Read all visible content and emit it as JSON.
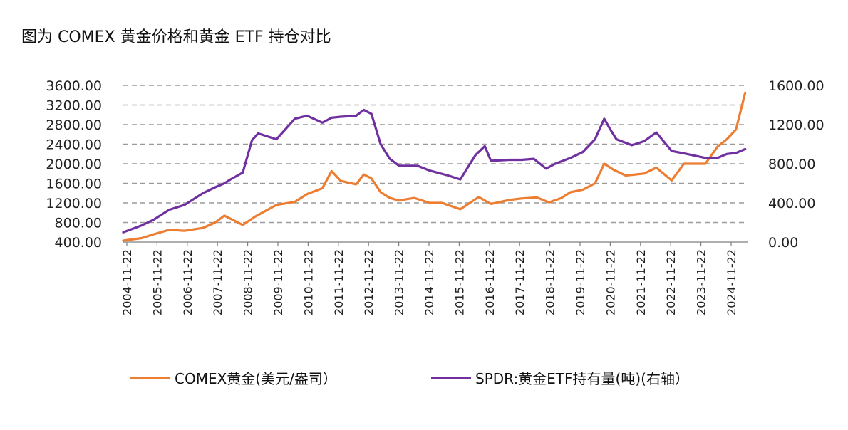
{
  "title": "图为 COMEX 黄金价格和黄金 ETF 持仓对比",
  "chart_data": {
    "type": "line",
    "title": "图为 COMEX 黄金价格和黄金 ETF 持仓对比",
    "x_tick_labels": [
      "2004-11-22",
      "2005-11-22",
      "2006-11-22",
      "2007-11-22",
      "2008-11-22",
      "2009-11-22",
      "2010-11-22",
      "2011-11-22",
      "2012-11-22",
      "2013-11-22",
      "2014-11-22",
      "2015-11-22",
      "2016-11-22",
      "2017-11-22",
      "2018-11-22",
      "2019-11-22",
      "2020-11-22",
      "2021-11-22",
      "2022-11-22",
      "2023-11-22",
      "2024-11-22"
    ],
    "y_left": {
      "min": 400,
      "max": 3600,
      "ticks": [
        "400.00",
        "800.00",
        "1200.00",
        "1600.00",
        "2000.00",
        "2400.00",
        "2800.00",
        "3200.00",
        "3600.00"
      ]
    },
    "y_right": {
      "min": 0,
      "max": 1600,
      "ticks": [
        "0.00",
        "400.00",
        "800.00",
        "1200.00",
        "1600.00"
      ]
    },
    "grid": "horizontal-dashed",
    "series": [
      {
        "name": "COMEX黄金(美元/盎司）",
        "axis": "left",
        "color": "#ED7D31",
        "x": [
          2004.9,
          2005.5,
          2005.9,
          2006.4,
          2006.9,
          2007.5,
          2007.9,
          2008.2,
          2008.8,
          2009.2,
          2009.9,
          2010.5,
          2010.9,
          2011.4,
          2011.7,
          2012.0,
          2012.5,
          2012.75,
          2013.0,
          2013.3,
          2013.6,
          2013.9,
          2014.4,
          2014.9,
          2015.3,
          2015.9,
          2016.5,
          2016.9,
          2017.5,
          2017.9,
          2018.4,
          2018.8,
          2019.2,
          2019.5,
          2019.9,
          2020.3,
          2020.6,
          2020.9,
          2021.3,
          2021.9,
          2022.3,
          2022.8,
          2023.2,
          2023.9,
          2024.3,
          2024.6,
          2024.9,
          2025.2
        ],
        "values": [
          430,
          480,
          560,
          650,
          630,
          690,
          800,
          940,
          750,
          920,
          1160,
          1220,
          1380,
          1500,
          1850,
          1650,
          1580,
          1780,
          1700,
          1420,
          1300,
          1250,
          1300,
          1200,
          1200,
          1070,
          1320,
          1180,
          1260,
          1290,
          1310,
          1210,
          1300,
          1420,
          1470,
          1600,
          2000,
          1880,
          1760,
          1800,
          1920,
          1660,
          2000,
          2000,
          2350,
          2500,
          2700,
          3450
        ]
      },
      {
        "name": "SPDR:黄金ETF持有量(吨)(右轴）",
        "axis": "right",
        "color": "#7030A0",
        "x": [
          2004.9,
          2005.5,
          2005.9,
          2006.4,
          2006.9,
          2007.5,
          2007.9,
          2008.2,
          2008.4,
          2008.8,
          2009.1,
          2009.3,
          2009.9,
          2010.5,
          2010.9,
          2011.4,
          2011.7,
          2012.0,
          2012.5,
          2012.75,
          2013.0,
          2013.3,
          2013.6,
          2013.9,
          2014.5,
          2014.9,
          2015.5,
          2015.9,
          2016.4,
          2016.7,
          2016.9,
          2017.5,
          2017.9,
          2018.3,
          2018.7,
          2019.0,
          2019.5,
          2019.9,
          2020.3,
          2020.6,
          2020.8,
          2021.0,
          2021.5,
          2021.9,
          2022.3,
          2022.8,
          2023.3,
          2023.9,
          2024.3,
          2024.6,
          2024.9,
          2025.2
        ],
        "values": [
          100,
          170,
          230,
          330,
          380,
          500,
          560,
          600,
          640,
          710,
          1040,
          1110,
          1050,
          1260,
          1290,
          1220,
          1270,
          1280,
          1290,
          1350,
          1310,
          1000,
          850,
          780,
          780,
          730,
          680,
          640,
          890,
          980,
          830,
          840,
          840,
          850,
          750,
          800,
          860,
          920,
          1050,
          1260,
          1150,
          1050,
          990,
          1030,
          1120,
          930,
          900,
          860,
          860,
          900,
          910,
          950
        ]
      }
    ]
  },
  "legend": {
    "gold_label": "COMEX黄金(美元/盎司）",
    "etf_label": "SPDR:黄金ETF持有量(吨)(右轴）"
  }
}
